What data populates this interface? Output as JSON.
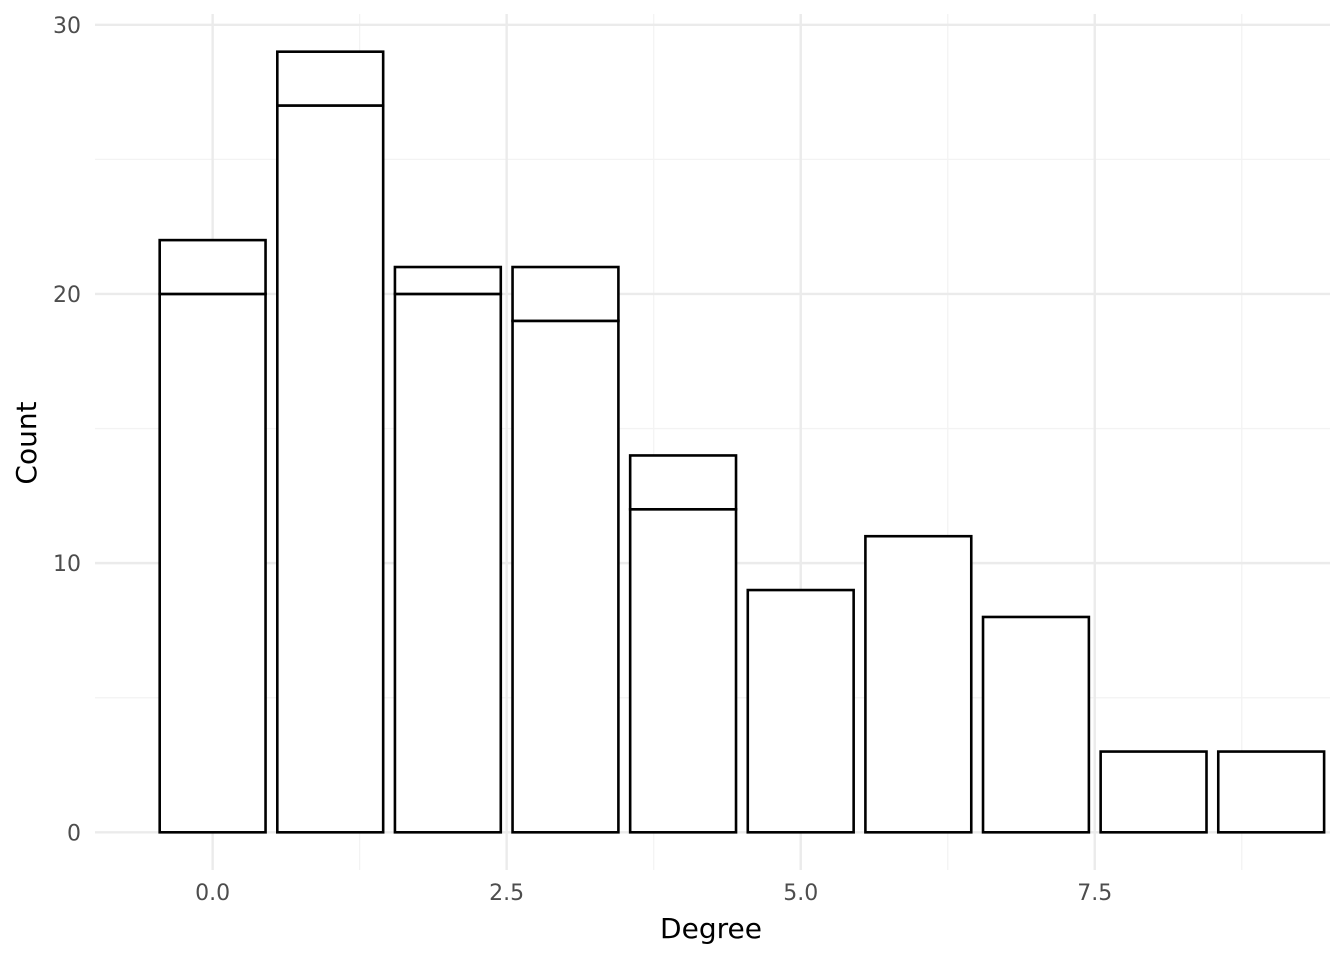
{
  "chart_data": {
    "type": "bar",
    "stacked": true,
    "title": "",
    "xlabel": "Degree",
    "ylabel": "Count",
    "x": [
      0,
      1,
      2,
      3,
      4,
      5,
      6,
      7,
      8,
      9
    ],
    "series": [
      {
        "values": [
          20,
          27,
          20,
          19,
          12,
          9,
          11,
          8,
          3,
          3
        ]
      },
      {
        "values": [
          2,
          2,
          1,
          2,
          2,
          0,
          0,
          0,
          0,
          0
        ]
      }
    ],
    "totals": [
      22,
      29,
      21,
      21,
      14,
      9,
      11,
      8,
      3,
      3
    ],
    "xlim": [
      -1.0,
      9.5
    ],
    "ylim": [
      -1.4,
      30.4
    ],
    "x_ticks": [
      0,
      2.5,
      5,
      7.5
    ],
    "x_tick_labels": [
      "0.0",
      "2.5",
      "5.0",
      "7.5"
    ],
    "y_ticks": [
      0,
      10,
      20,
      30
    ],
    "y_tick_labels": [
      "0",
      "10",
      "20",
      "30"
    ],
    "grid": true,
    "legend": "none",
    "bar_fill": "#ffffff",
    "bar_stroke": "#000000"
  }
}
